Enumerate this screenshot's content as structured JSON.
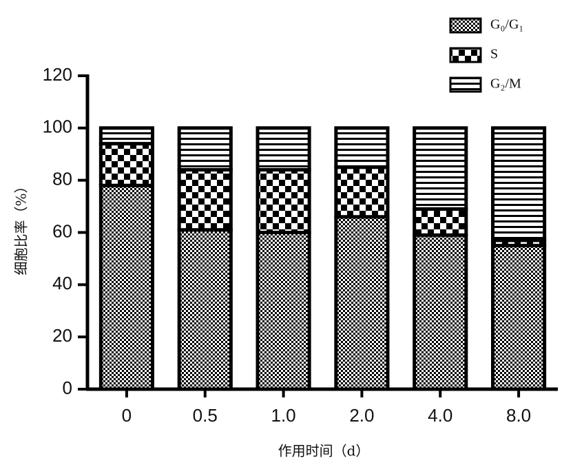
{
  "chart_data": {
    "type": "stacked_bar",
    "x_label": "作用时间（d）",
    "y_label": "细胞比率（%）",
    "categories": [
      "0",
      "0.5",
      "1.0",
      "2.0",
      "4.0",
      "8.0"
    ],
    "series": [
      {
        "name": "G₀/G₁",
        "color": "#000000",
        "values": [
          78,
          61,
          60,
          66,
          59,
          55
        ]
      },
      {
        "name": "S",
        "color": "#000000",
        "values": [
          16,
          23,
          24,
          19,
          10,
          2
        ]
      },
      {
        "name": "G₂/M",
        "color": "#000000",
        "values": [
          6,
          16,
          16,
          15,
          31,
          43
        ]
      }
    ],
    "ylim": [
      0,
      120
    ],
    "yticks": [
      0,
      20,
      40,
      60,
      80,
      100,
      120
    ],
    "legend": "top-right"
  }
}
